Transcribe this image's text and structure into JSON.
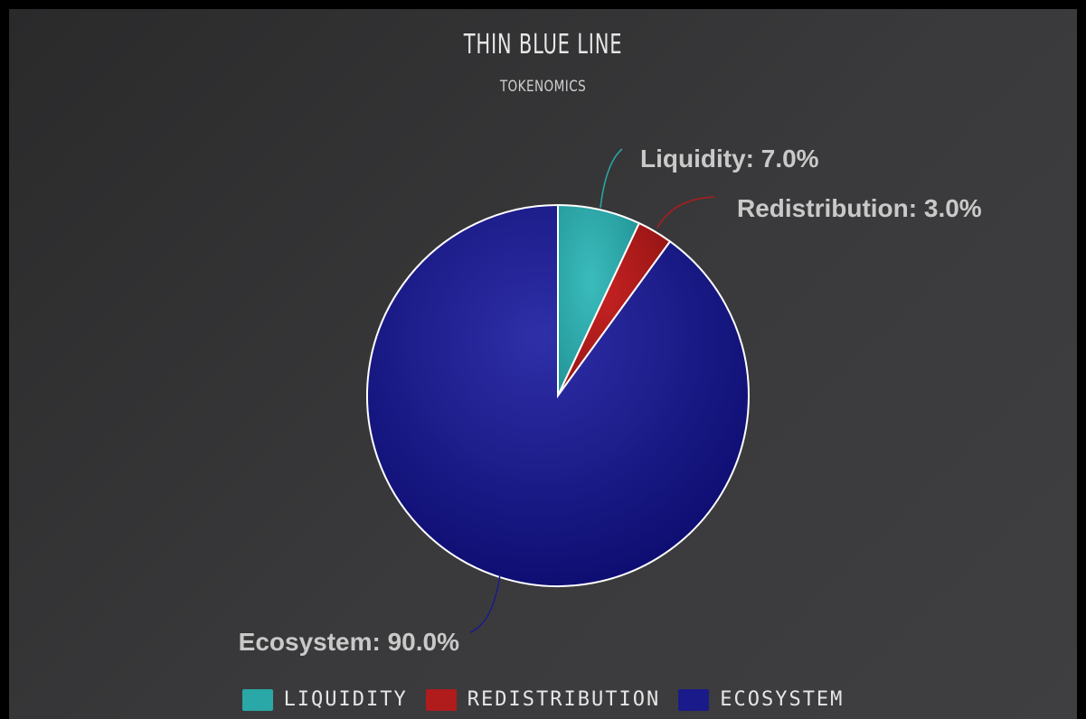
{
  "chart_data": {
    "type": "pie",
    "title": "THIN BLUE LINE",
    "subtitle": "TOKENOMICS",
    "slices": [
      {
        "name": "Liquidity",
        "value": 7.0,
        "color": "#2aa7a7",
        "label": "Liquidity: 7.0%"
      },
      {
        "name": "Redistribution",
        "value": 3.0,
        "color": "#b01c1c",
        "label": "Redistribution: 3.0%"
      },
      {
        "name": "Ecosystem",
        "value": 90.0,
        "color": "#1a1a8a",
        "label": "Ecosystem: 90.0%"
      }
    ],
    "legend": {
      "position": "bottom",
      "items": [
        "LIQUIDITY",
        "REDISTRIBUTION",
        "ECOSYSTEM"
      ]
    },
    "unit": "%"
  }
}
